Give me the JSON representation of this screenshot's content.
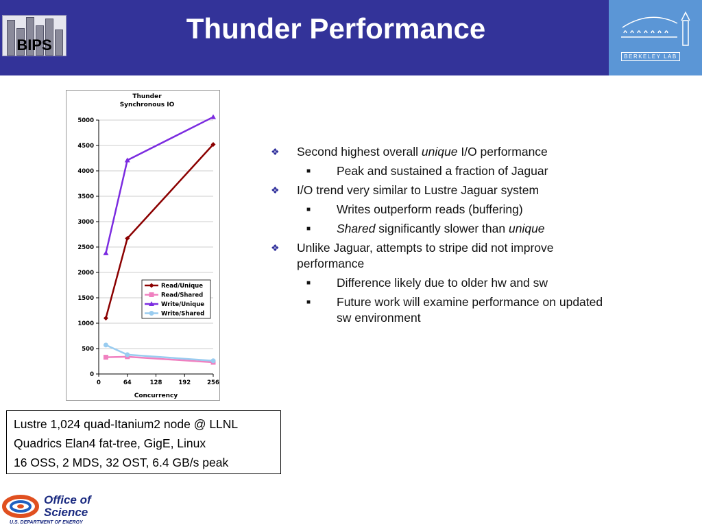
{
  "header": {
    "title": "Thunder Performance",
    "logo_left_text": "BIPS",
    "logo_right_text": "BERKELEY LAB",
    "background_color": "#333399",
    "right_logo_color": "#5b96d6"
  },
  "chart_data": {
    "type": "line",
    "title": "Thunder",
    "subtitle": "Synchronous IO",
    "xlabel": "Concurrency",
    "ylabel": "",
    "xlim": [
      0,
      256
    ],
    "ylim": [
      0,
      5000
    ],
    "x_ticks": [
      "0",
      "64",
      "128",
      "192",
      "256"
    ],
    "y_ticks": [
      "0",
      "500",
      "1000",
      "1500",
      "2000",
      "2500",
      "3000",
      "3500",
      "4000",
      "4500",
      "5000"
    ],
    "grid": "horizontal",
    "legend_position": "bottom-right",
    "x": [
      16,
      64,
      256
    ],
    "series": [
      {
        "name": "Read/Unique",
        "values": [
          1100,
          2670,
          4520
        ],
        "color": "#8b0000",
        "marker": "diamond"
      },
      {
        "name": "Read/Shared",
        "values": [
          330,
          340,
          230
        ],
        "color": "#f080c0",
        "marker": "square"
      },
      {
        "name": "Write/Unique",
        "values": [
          2380,
          4210,
          5060
        ],
        "color": "#7b2be0",
        "marker": "triangle"
      },
      {
        "name": "Write/Shared",
        "values": [
          570,
          380,
          260
        ],
        "color": "#99ccf0",
        "marker": "circle"
      }
    ]
  },
  "bullets": [
    {
      "level": 1,
      "parts": [
        {
          "text": "Second highest overall "
        },
        {
          "text": "unique",
          "italic": true
        },
        {
          "text": " I/O performance"
        }
      ]
    },
    {
      "level": 2,
      "parts": [
        {
          "text": "Peak and sustained a fraction of Jaguar"
        }
      ]
    },
    {
      "level": 1,
      "parts": [
        {
          "text": "I/O  trend very similar to Lustre Jaguar system"
        }
      ]
    },
    {
      "level": 2,
      "parts": [
        {
          "text": "Writes outperform reads (buffering)"
        }
      ]
    },
    {
      "level": 2,
      "parts": [
        {
          "text": "Shared",
          "italic": true
        },
        {
          "text": " significantly slower than "
        },
        {
          "text": "unique",
          "italic": true
        }
      ]
    },
    {
      "level": 1,
      "parts": [
        {
          "text": "Unlike Jaguar, attempts to stripe did not improve performance"
        }
      ]
    },
    {
      "level": 2,
      "parts": [
        {
          "text": "Difference likely due to older hw and sw"
        }
      ]
    },
    {
      "level": 2,
      "parts": [
        {
          "text": "Future work will examine performance on updated sw environment"
        }
      ]
    }
  ],
  "infobox": {
    "lines": [
      "Lustre 1,024 quad-Itanium2 node @ LLNL",
      "Quadrics Elan4 fat-tree, GigE, Linux",
      "16 OSS, 2 MDS, 32 OST, 6.4 GB/s peak"
    ]
  },
  "footer": {
    "office_line1": "Office of",
    "office_line2": "Science",
    "doe_line": "U.S. DEPARTMENT OF ENERGY"
  }
}
